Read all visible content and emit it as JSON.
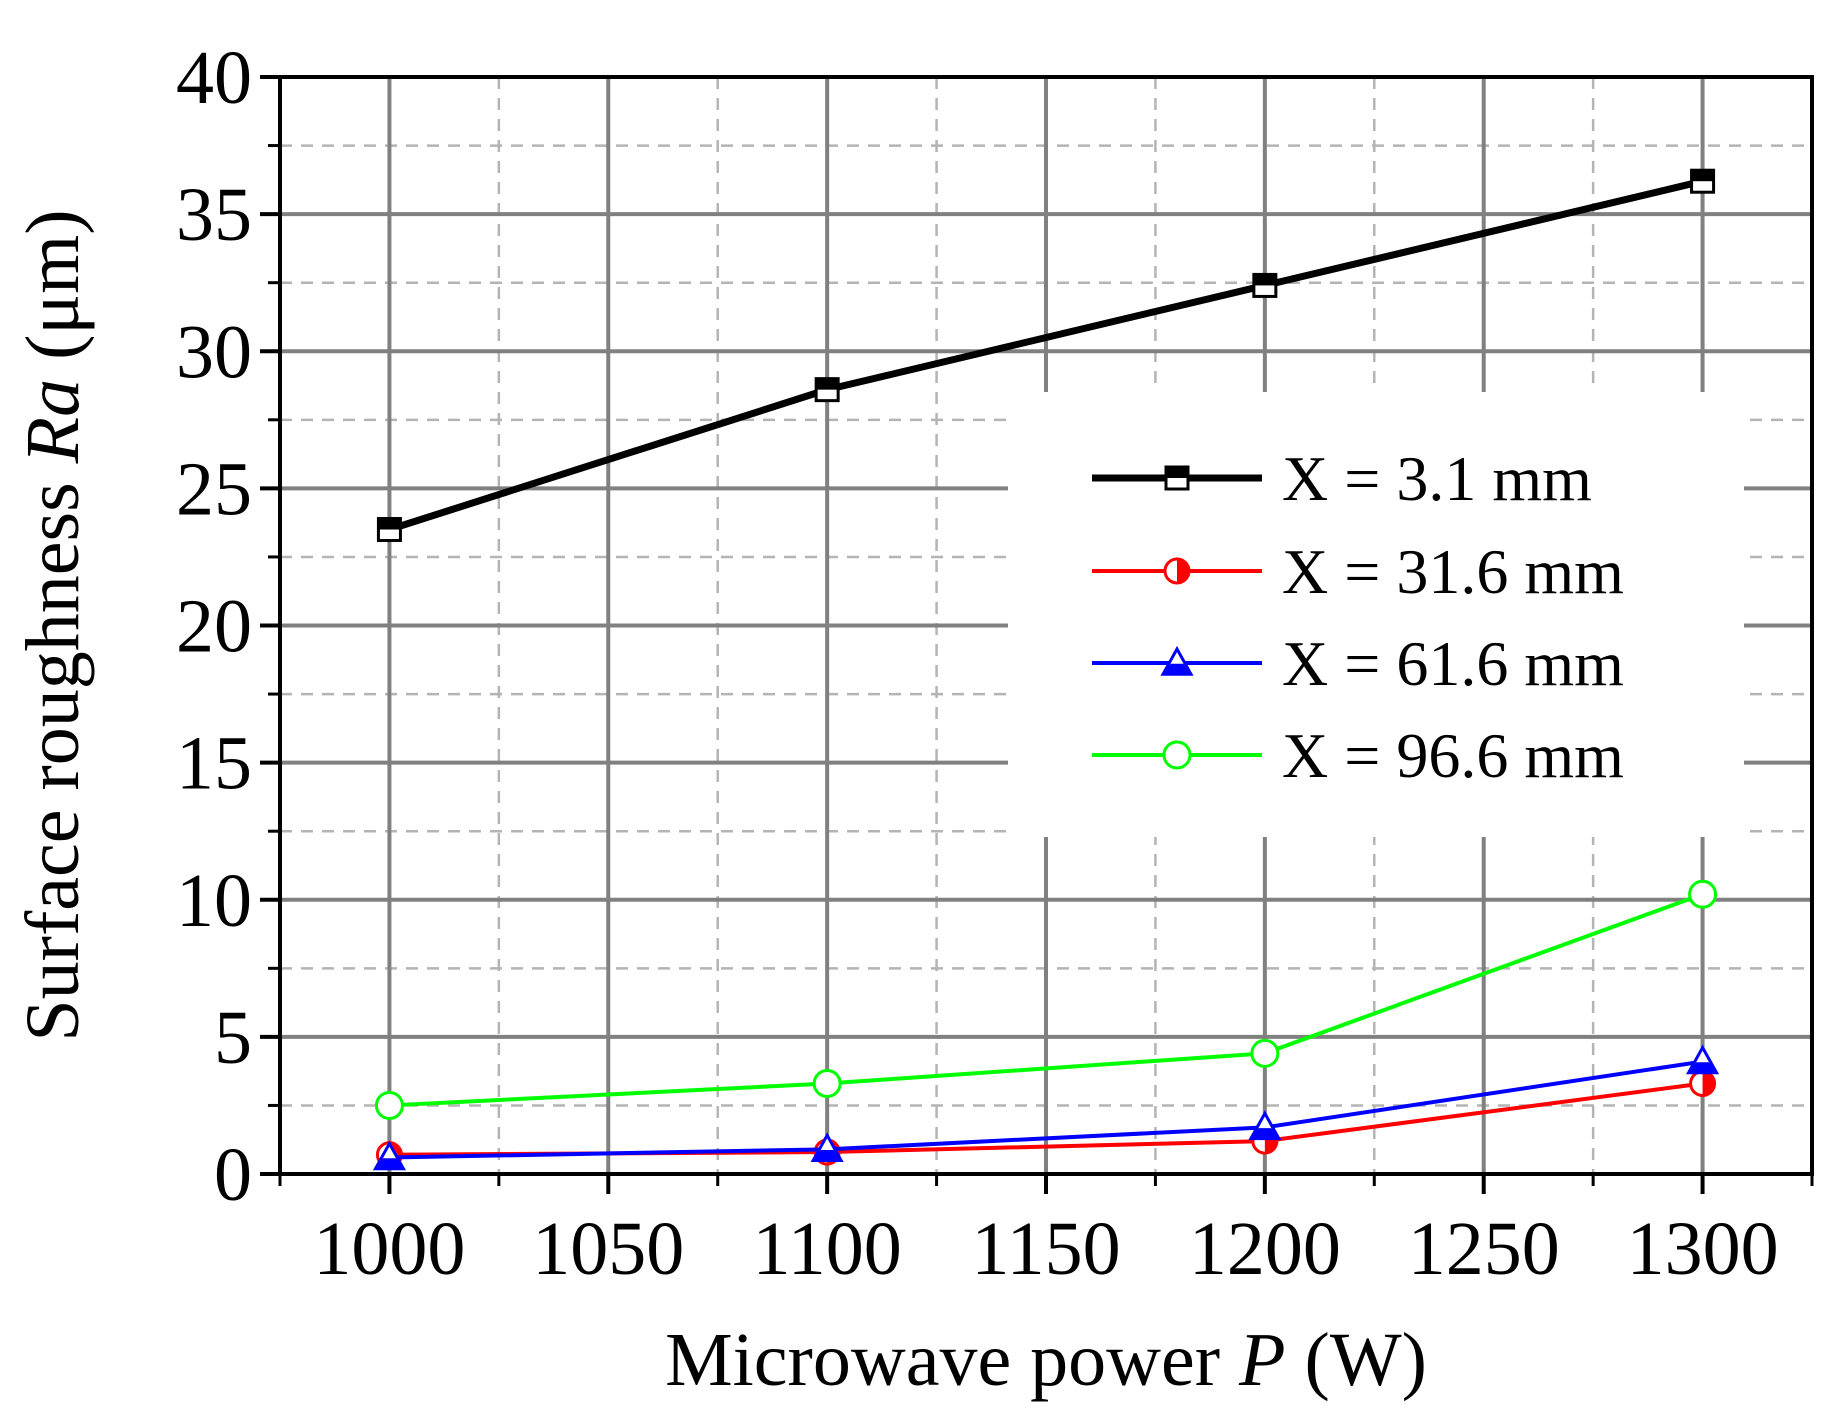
{
  "chart_data": {
    "type": "line",
    "title": "",
    "xlabel": {
      "prefix": "Microwave power ",
      "var": "P",
      "suffix": " (W)"
    },
    "ylabel": {
      "prefix": "Surface roughness ",
      "var": "Ra",
      "suffix": " (μm)"
    },
    "xlim": [
      975,
      1325
    ],
    "ylim": [
      0,
      40
    ],
    "x_major_ticks": [
      1000,
      1050,
      1100,
      1150,
      1200,
      1250,
      1300
    ],
    "x_minor_ticks": [
      1025,
      1075,
      1125,
      1175,
      1225,
      1275
    ],
    "y_major_ticks": [
      0,
      5,
      10,
      15,
      20,
      25,
      30,
      35,
      40
    ],
    "y_minor_ticks": [
      2.5,
      7.5,
      12.5,
      17.5,
      22.5,
      27.5,
      32.5,
      37.5
    ],
    "x_tick_labels": [
      "1000",
      "1050",
      "1100",
      "1150",
      "1200",
      "1250",
      "1300"
    ],
    "y_tick_labels": [
      "0",
      "5",
      "10",
      "15",
      "20",
      "25",
      "30",
      "35",
      "40"
    ],
    "grid": true,
    "legend_position": "right-middle",
    "x": [
      1000,
      1100,
      1200,
      1300
    ],
    "series": [
      {
        "name": "X = 3.1 mm",
        "values": [
          23.5,
          28.6,
          32.4,
          36.2
        ],
        "color": "#000000",
        "marker": "square-half"
      },
      {
        "name": "X = 31.6 mm",
        "values": [
          0.7,
          0.8,
          1.2,
          3.3
        ],
        "color": "#ff0000",
        "marker": "circle-half"
      },
      {
        "name": "X = 61.6 mm",
        "values": [
          0.6,
          0.9,
          1.7,
          4.1
        ],
        "color": "#0000ff",
        "marker": "triangle-half"
      },
      {
        "name": "X = 96.6 mm",
        "values": [
          2.5,
          3.3,
          4.4,
          10.2
        ],
        "color": "#00ff00",
        "marker": "circle-open"
      }
    ]
  }
}
